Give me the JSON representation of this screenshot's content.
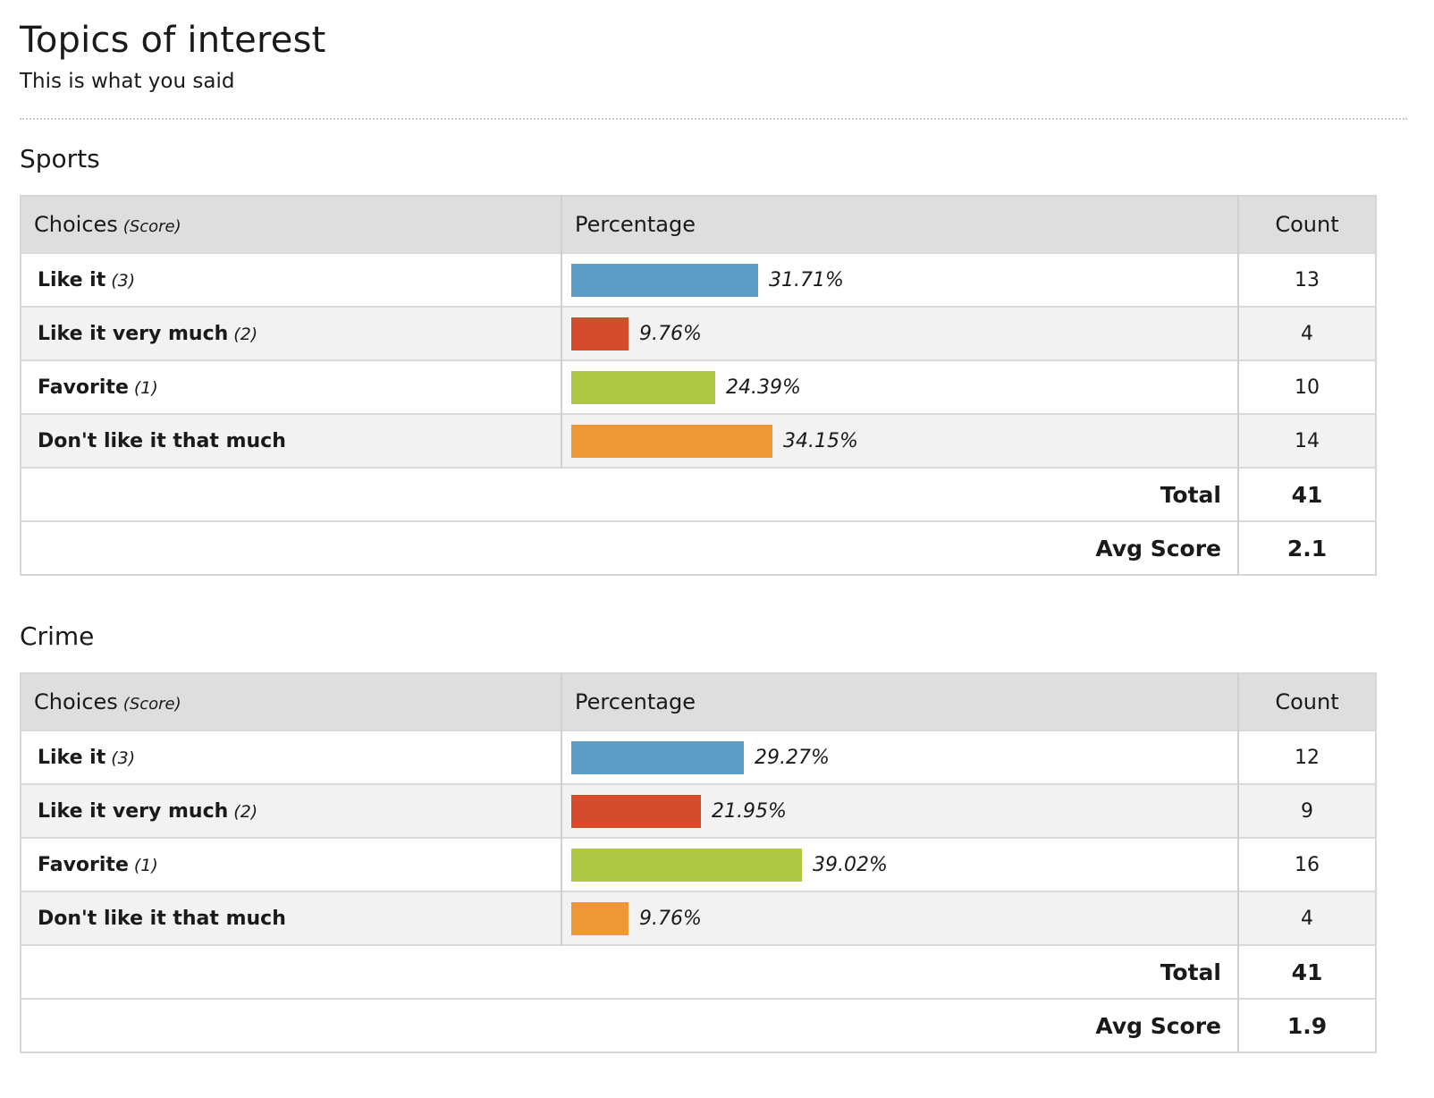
{
  "header": {
    "title": "Topics of interest",
    "subtitle": "This is what you said"
  },
  "table_headers": {
    "choices": "Choices",
    "score_hint": "(Score)",
    "percentage": "Percentage",
    "count": "Count"
  },
  "colors": {
    "like_it": "#5e9cc8",
    "like_it_very_much": "#d64b2a",
    "favorite": "#afc843",
    "dont_like": "#ee9736"
  },
  "sections": [
    {
      "title": "Sports",
      "rows": [
        {
          "label": "Like it",
          "score": "(3)",
          "percent": 31.71,
          "percent_label": "31.71%",
          "count": "13",
          "color": "#5e9cc8"
        },
        {
          "label": "Like it very much",
          "score": "(2)",
          "percent": 9.76,
          "percent_label": "9.76%",
          "count": "4",
          "color": "#d64b2a"
        },
        {
          "label": "Favorite",
          "score": "(1)",
          "percent": 24.39,
          "percent_label": "24.39%",
          "count": "10",
          "color": "#afc843"
        },
        {
          "label": "Don't like it that much",
          "score": "",
          "percent": 34.15,
          "percent_label": "34.15%",
          "count": "14",
          "color": "#ee9736"
        }
      ],
      "total_label": "Total",
      "total": "41",
      "avg_label": "Avg Score",
      "avg": "2.1"
    },
    {
      "title": "Crime",
      "rows": [
        {
          "label": "Like it",
          "score": "(3)",
          "percent": 29.27,
          "percent_label": "29.27%",
          "count": "12",
          "color": "#5e9cc8"
        },
        {
          "label": "Like it very much",
          "score": "(2)",
          "percent": 21.95,
          "percent_label": "21.95%",
          "count": "9",
          "color": "#d64b2a"
        },
        {
          "label": "Favorite",
          "score": "(1)",
          "percent": 39.02,
          "percent_label": "39.02%",
          "count": "16",
          "color": "#afc843"
        },
        {
          "label": "Don't like it that much",
          "score": "",
          "percent": 9.76,
          "percent_label": "9.76%",
          "count": "4",
          "color": "#ee9736"
        }
      ],
      "total_label": "Total",
      "total": "41",
      "avg_label": "Avg Score",
      "avg": "1.9"
    }
  ]
}
